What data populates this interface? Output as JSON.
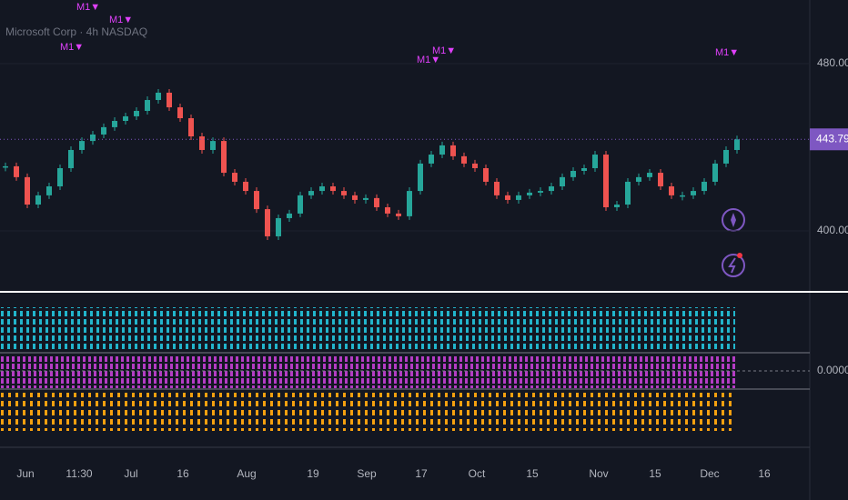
{
  "chart_data": {
    "type": "candlestick",
    "title": "Microsoft Corp · 4h NASDAQ",
    "close": [
      430.9,
      425.7,
      412.6,
      417.0,
      421.3,
      430.0,
      438.7,
      443.0,
      446.1,
      449.6,
      452.6,
      454.8,
      457.4,
      462.6,
      466.1,
      459.1,
      453.9,
      445.2,
      438.7,
      443.0,
      427.8,
      423.5,
      419.1,
      410.4,
      397.4,
      406.1,
      408.3,
      417.0,
      419.1,
      421.3,
      419.1,
      417.0,
      414.8,
      415.7,
      411.3,
      408.3,
      407.0,
      419.1,
      432.2,
      436.5,
      440.9,
      435.7,
      432.2,
      430.0,
      423.5,
      417.0,
      414.8,
      417.0,
      418.3,
      419.1,
      421.3,
      425.7,
      428.7,
      430.0,
      436.5,
      411.3,
      412.6,
      423.5,
      425.7,
      427.8,
      421.3,
      417.0,
      417.0,
      419.1,
      423.5,
      432.2,
      438.7,
      443.79
    ],
    "up_color": "#26a69a",
    "down_color": "#ef5350",
    "ylim": [
      371.3,
      510.43
    ],
    "yticks": [
      {
        "value": 400,
        "label": "400.00"
      },
      {
        "value": 480,
        "label": "480.00"
      }
    ],
    "last_price": {
      "value": 443.79,
      "label": "443.79"
    },
    "x_tick_labels": [
      "Jun",
      "11:30",
      "Jul",
      "16",
      "Aug",
      "19",
      "Sep",
      "17",
      "Oct",
      "15",
      "Nov",
      "15",
      "Dec",
      "16"
    ],
    "signals": [
      "M1▼",
      "M1▼",
      "M1▼",
      "M1▼",
      "M1▼",
      "M1▼"
    ],
    "indicator_zero_label": "0.0000"
  }
}
